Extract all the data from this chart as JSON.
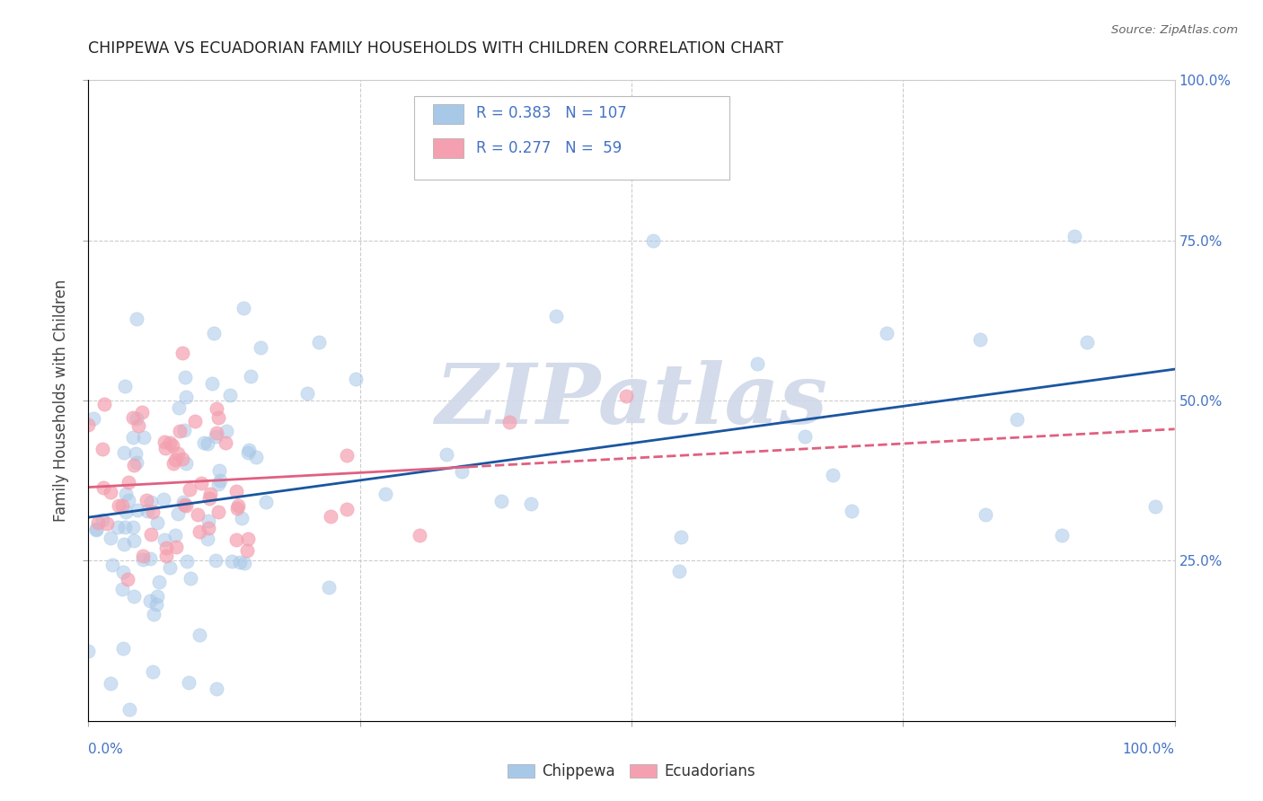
{
  "title": "CHIPPEWA VS ECUADORIAN FAMILY HOUSEHOLDS WITH CHILDREN CORRELATION CHART",
  "source": "Source: ZipAtlas.com",
  "ylabel": "Family Households with Children",
  "xlim": [
    0,
    1
  ],
  "ylim": [
    0,
    1
  ],
  "xtick_left_label": "0.0%",
  "xtick_right_label": "100.0%",
  "ytick_labels": [
    "25.0%",
    "50.0%",
    "75.0%",
    "100.0%"
  ],
  "ytick_vals": [
    0.25,
    0.5,
    0.75,
    1.0
  ],
  "chippewa_color": "#a8c8e8",
  "ecuadorian_color": "#f4a0b0",
  "chippewa_line_color": "#1a56a0",
  "ecuadorian_line_color": "#e06080",
  "legend_color": "#4472c4",
  "watermark_color": "#d0d8e8",
  "background_color": "#ffffff",
  "grid_color": "#cccccc",
  "title_color": "#222222",
  "ylabel_color": "#555555",
  "chippewa_R": 0.383,
  "chippewa_N": 107,
  "ecuadorian_R": 0.277,
  "ecuadorian_N": 59
}
